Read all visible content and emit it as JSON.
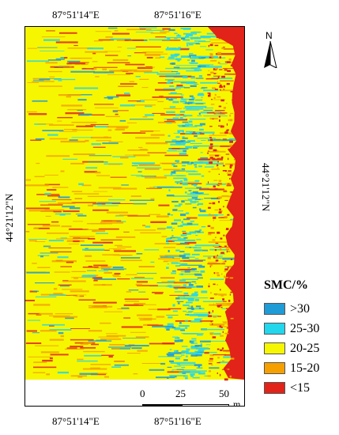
{
  "labels": {
    "lon_left": "87°51'14\"E",
    "lon_right": "87°51'16\"E",
    "lat": "44°21'12\"N"
  },
  "north_arrow": {
    "label": "N"
  },
  "legend": {
    "title": "SMC/%",
    "items": [
      {
        "label": ">30",
        "color": "#1f9bd6"
      },
      {
        "label": "25-30",
        "color": "#22d6ec"
      },
      {
        "label": "20-25",
        "color": "#f6f600"
      },
      {
        "label": "15-20",
        "color": "#f5a000"
      },
      {
        "label": "<15",
        "color": "#e2231a"
      }
    ]
  },
  "scale_bar": {
    "ticks": [
      "0",
      "25",
      "50"
    ],
    "unit": "m"
  }
}
